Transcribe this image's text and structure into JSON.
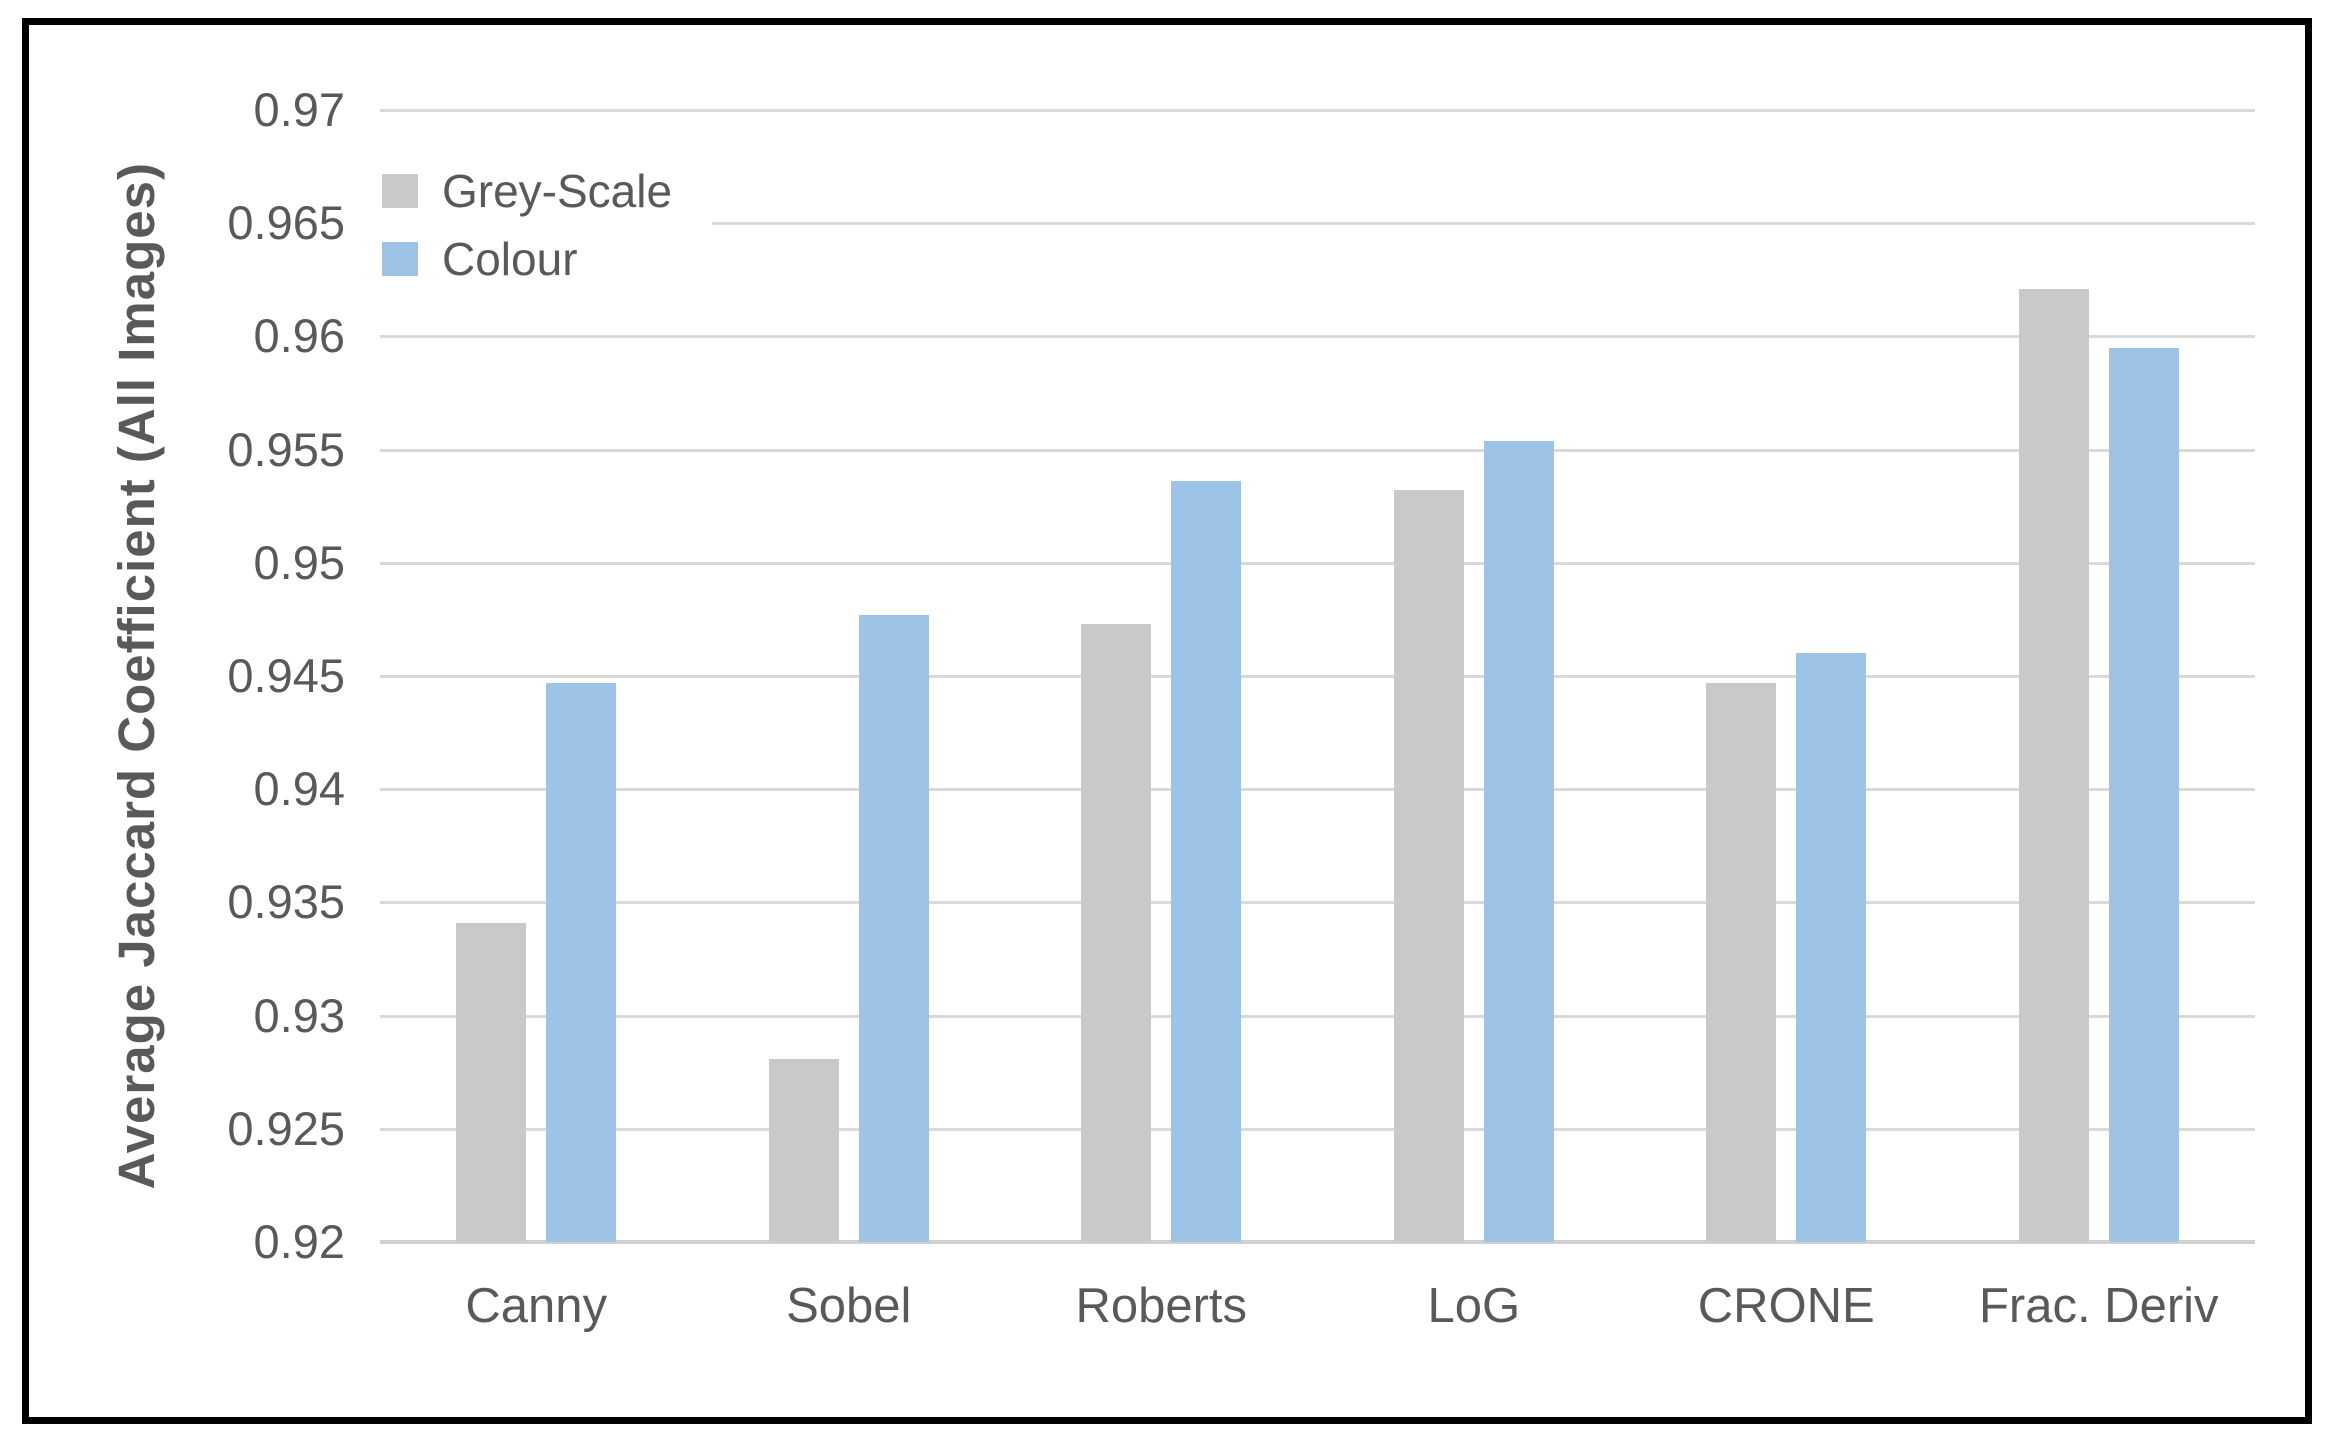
{
  "figure": {
    "border_color": "#000000",
    "background_color": "#ffffff",
    "text_color": "#595959",
    "gridline_color": "#d9d9d9",
    "axis_line_color": "#d0d0d0"
  },
  "chart_data": {
    "type": "bar",
    "title": "",
    "xlabel": "",
    "ylabel": "Average Jaccard Coefficient (All Images)",
    "categories": [
      "Canny",
      "Sobel",
      "Roberts",
      "LoG",
      "CRONE",
      "Frac. Deriv"
    ],
    "series": [
      {
        "name": "Grey-Scale",
        "color": "#c9c9c9",
        "values": [
          0.9341,
          0.9281,
          0.9473,
          0.9532,
          0.9447,
          0.9621
        ]
      },
      {
        "name": "Colour",
        "color": "#9dc3e6",
        "values": [
          0.9447,
          0.9477,
          0.9536,
          0.9554,
          0.946,
          0.9595
        ]
      }
    ],
    "ylim": [
      0.92,
      0.97
    ],
    "ytick_step": 0.005,
    "yticks": [
      {
        "value": 0.97,
        "label": "0.97"
      },
      {
        "value": 0.965,
        "label": "0.965"
      },
      {
        "value": 0.96,
        "label": "0.96"
      },
      {
        "value": 0.955,
        "label": "0.955"
      },
      {
        "value": 0.95,
        "label": "0.95"
      },
      {
        "value": 0.945,
        "label": "0.945"
      },
      {
        "value": 0.94,
        "label": "0.94"
      },
      {
        "value": 0.935,
        "label": "0.935"
      },
      {
        "value": 0.93,
        "label": "0.93"
      },
      {
        "value": 0.925,
        "label": "0.925"
      },
      {
        "value": 0.92,
        "label": "0.92"
      }
    ],
    "grid": true,
    "legend_position": "top-left-inside"
  }
}
